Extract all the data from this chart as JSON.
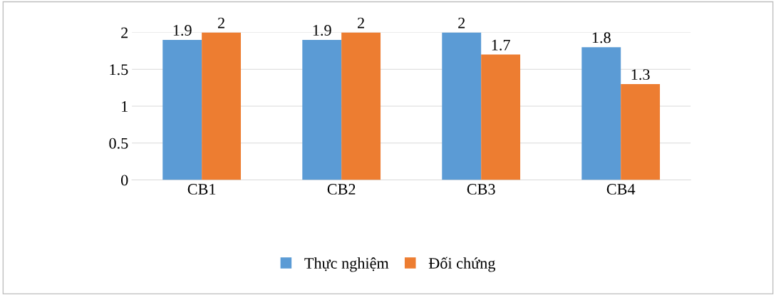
{
  "chart_data": {
    "type": "bar",
    "categories": [
      "CB1",
      "CB2",
      "CB3",
      "CB4"
    ],
    "series": [
      {
        "name": "Thực nghiệm",
        "color": "#5b9bd5",
        "values": [
          1.9,
          1.9,
          2,
          1.8
        ]
      },
      {
        "name": "Đối chứng",
        "color": "#ed7d31",
        "values": [
          2,
          2,
          1.7,
          1.3
        ]
      }
    ],
    "ylim": [
      0,
      2
    ],
    "yticks": [
      0,
      0.5,
      1,
      1.5,
      2
    ],
    "grid": "y",
    "legend": "bottom",
    "data_labels": true
  }
}
